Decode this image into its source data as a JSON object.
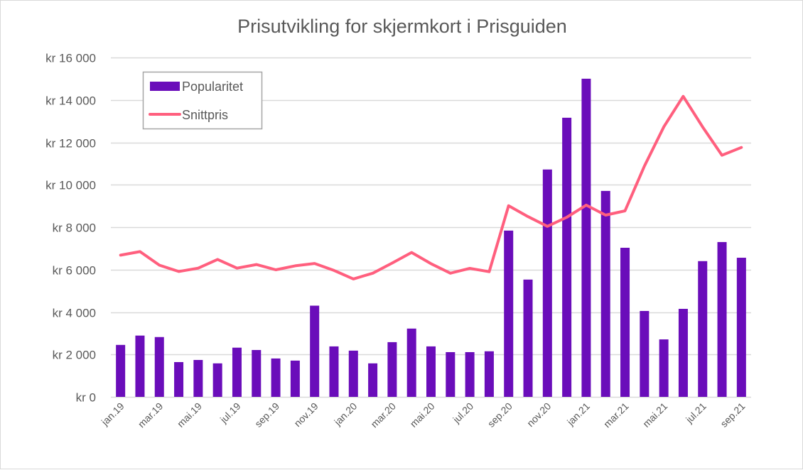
{
  "chart_data": {
    "type": "bar",
    "title": "Prisutvikling for skjermkort i Prisguiden",
    "xlabel": "",
    "ylabel": "",
    "ylim": [
      0,
      16000
    ],
    "y_ticks": [
      0,
      2000,
      4000,
      6000,
      8000,
      10000,
      12000,
      14000,
      16000
    ],
    "y_tick_labels": [
      "kr 0",
      "kr 2 000",
      "kr 4 000",
      "kr 6 000",
      "kr 8 000",
      "kr 10 000",
      "kr 12 000",
      "kr 14 000",
      "kr 16 000"
    ],
    "grid": true,
    "legend_position": "top-left",
    "categories": [
      "jan.19",
      "feb.19",
      "mar.19",
      "apr.19",
      "mai.19",
      "jun.19",
      "jul.19",
      "aug.19",
      "sep.19",
      "okt.19",
      "nov.19",
      "des.19",
      "jan.20",
      "feb.20",
      "mar.20",
      "apr.20",
      "mai.20",
      "jun.20",
      "jul.20",
      "aug.20",
      "sep.20",
      "okt.20",
      "nov.20",
      "des.20",
      "jan.21",
      "feb.21",
      "mar.21",
      "apr.21",
      "mai.21",
      "jun.21",
      "jul.21",
      "aug.21",
      "sep.21"
    ],
    "visible_x_tick_labels": [
      "jan.19",
      "mar.19",
      "mai.19",
      "jul.19",
      "sep.19",
      "nov.19",
      "jan.20",
      "mar.20",
      "mai.20",
      "jul.20",
      "sep.20",
      "nov.20",
      "jan.21",
      "mar.21",
      "mai.21",
      "jul.21",
      "sep.21"
    ],
    "series": [
      {
        "name": "Popularitet",
        "type": "bar",
        "color": "#6a0dba",
        "values": [
          2450,
          2890,
          2820,
          1640,
          1740,
          1580,
          2320,
          2210,
          1810,
          1710,
          4300,
          2380,
          2180,
          1580,
          2580,
          3220,
          2380,
          2110,
          2110,
          2150,
          7840,
          5530,
          10720,
          13160,
          15000,
          9710,
          7030,
          4050,
          2710,
          4150,
          6400,
          7300,
          6560
        ]
      },
      {
        "name": "Snittpris",
        "type": "line",
        "color": "#ff5f7e",
        "values": [
          6680,
          6850,
          6210,
          5910,
          6070,
          6480,
          6070,
          6240,
          5990,
          6180,
          6290,
          5960,
          5560,
          5830,
          6310,
          6810,
          6280,
          5830,
          6060,
          5900,
          9010,
          8500,
          8040,
          8470,
          9040,
          8570,
          8770,
          10880,
          12730,
          14170,
          12730,
          11390,
          11760
        ]
      }
    ]
  }
}
